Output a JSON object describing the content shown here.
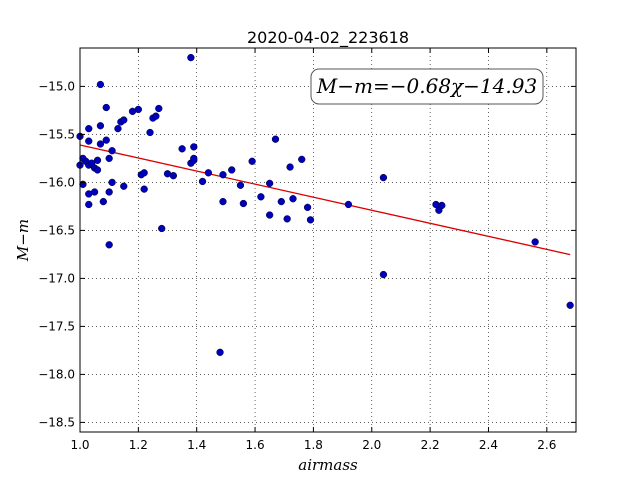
{
  "chart_data": {
    "type": "scatter",
    "title": "2020-04-02_223618",
    "xlabel": "airmass",
    "ylabel": "M−m",
    "xlim": [
      1.0,
      2.7
    ],
    "ylim": [
      -18.6,
      -14.6
    ],
    "y_inverted_display": false,
    "grid": true,
    "xticks": [
      1.0,
      1.2,
      1.4,
      1.6,
      1.8,
      2.0,
      2.2,
      2.4,
      2.6
    ],
    "xtick_labels": [
      "1.0",
      "1.2",
      "1.4",
      "1.6",
      "1.8",
      "2.0",
      "2.2",
      "2.4",
      "2.6"
    ],
    "yticks": [
      -15.0,
      -15.5,
      -16.0,
      -16.5,
      -17.0,
      -17.5,
      -18.0,
      -18.5
    ],
    "ytick_labels": [
      "−15.0",
      "−15.5",
      "−16.0",
      "−16.5",
      "−17.0",
      "−17.5",
      "−18.0",
      "−18.5"
    ],
    "annotation": "M−m=−0.68χ−14.93",
    "fit": {
      "slope": -0.68,
      "intercept": -14.93,
      "x_range": [
        1.0,
        2.68
      ],
      "color": "#dd0000"
    },
    "point_color": "#0000bb",
    "points": [
      [
        1.0,
        -15.52
      ],
      [
        1.0,
        -15.82
      ],
      [
        1.01,
        -16.02
      ],
      [
        1.01,
        -15.75
      ],
      [
        1.02,
        -15.78
      ],
      [
        1.03,
        -15.44
      ],
      [
        1.03,
        -15.57
      ],
      [
        1.03,
        -15.82
      ],
      [
        1.03,
        -16.12
      ],
      [
        1.03,
        -16.23
      ],
      [
        1.04,
        -15.8
      ],
      [
        1.05,
        -15.85
      ],
      [
        1.05,
        -16.1
      ],
      [
        1.06,
        -15.87
      ],
      [
        1.06,
        -15.77
      ],
      [
        1.07,
        -14.98
      ],
      [
        1.07,
        -15.41
      ],
      [
        1.07,
        -15.6
      ],
      [
        1.08,
        -16.2
      ],
      [
        1.09,
        -15.22
      ],
      [
        1.09,
        -15.56
      ],
      [
        1.1,
        -15.75
      ],
      [
        1.1,
        -16.1
      ],
      [
        1.1,
        -16.65
      ],
      [
        1.11,
        -16.0
      ],
      [
        1.11,
        -15.67
      ],
      [
        1.13,
        -15.44
      ],
      [
        1.14,
        -15.37
      ],
      [
        1.15,
        -15.35
      ],
      [
        1.15,
        -16.04
      ],
      [
        1.18,
        -15.26
      ],
      [
        1.2,
        -15.24
      ],
      [
        1.21,
        -15.92
      ],
      [
        1.22,
        -15.9
      ],
      [
        1.22,
        -16.07
      ],
      [
        1.24,
        -15.48
      ],
      [
        1.25,
        -15.33
      ],
      [
        1.26,
        -15.31
      ],
      [
        1.27,
        -15.23
      ],
      [
        1.28,
        -16.48
      ],
      [
        1.3,
        -15.91
      ],
      [
        1.32,
        -15.93
      ],
      [
        1.35,
        -15.65
      ],
      [
        1.38,
        -14.7
      ],
      [
        1.38,
        -15.8
      ],
      [
        1.39,
        -15.63
      ],
      [
        1.39,
        -15.77
      ],
      [
        1.39,
        -15.75
      ],
      [
        1.42,
        -15.99
      ],
      [
        1.44,
        -15.9
      ],
      [
        1.48,
        -17.77
      ],
      [
        1.49,
        -16.2
      ],
      [
        1.49,
        -15.92
      ],
      [
        1.52,
        -15.87
      ],
      [
        1.55,
        -16.03
      ],
      [
        1.56,
        -16.22
      ],
      [
        1.59,
        -15.78
      ],
      [
        1.62,
        -16.15
      ],
      [
        1.65,
        -16.01
      ],
      [
        1.65,
        -16.34
      ],
      [
        1.67,
        -15.55
      ],
      [
        1.69,
        -16.2
      ],
      [
        1.71,
        -16.38
      ],
      [
        1.72,
        -15.84
      ],
      [
        1.73,
        -16.17
      ],
      [
        1.76,
        -15.76
      ],
      [
        1.78,
        -16.26
      ],
      [
        1.79,
        -16.39
      ],
      [
        1.92,
        -16.23
      ],
      [
        2.04,
        -15.95
      ],
      [
        2.04,
        -16.96
      ],
      [
        2.22,
        -16.23
      ],
      [
        2.23,
        -16.29
      ],
      [
        2.24,
        -16.24
      ],
      [
        2.56,
        -16.62
      ],
      [
        2.68,
        -17.28
      ]
    ]
  }
}
